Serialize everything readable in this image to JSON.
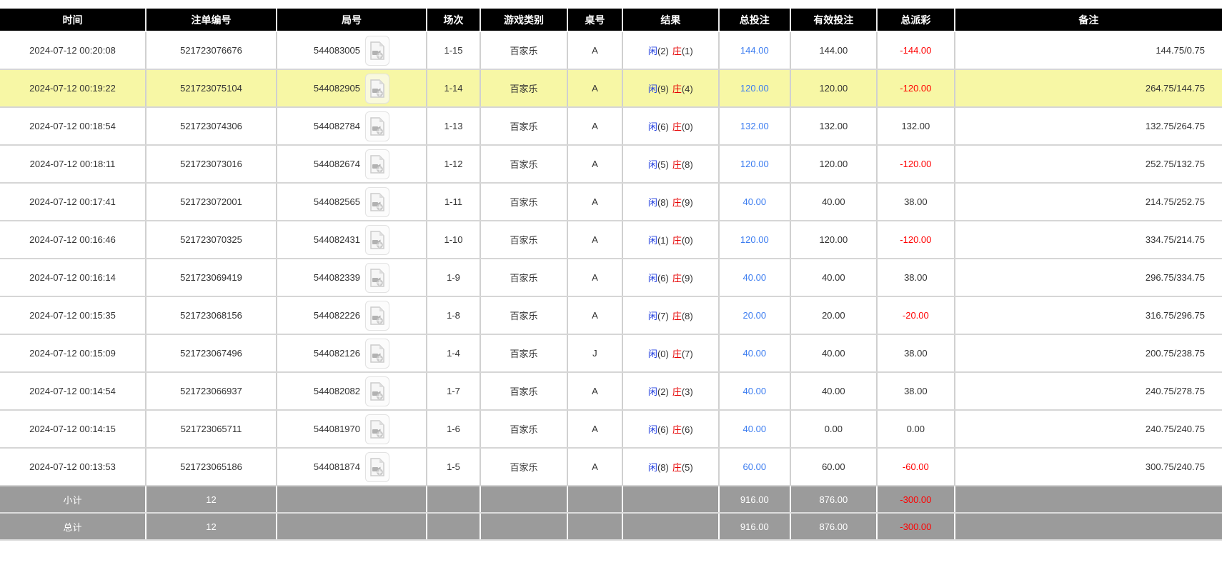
{
  "headers": [
    "时间",
    "注单编号",
    "局号",
    "场次",
    "游戏类别",
    "桌号",
    "结果",
    "总投注",
    "有效投注",
    "总派彩",
    "备注"
  ],
  "icons": {
    "video_record": "video-file-icon"
  },
  "colors": {
    "header_bg": "#000000",
    "header_text": "#ffffff",
    "highlight_row": "#f7f7a5",
    "player_blue": "#2743e0",
    "banker_red": "#e60000",
    "bet_blue": "#3b7cf0",
    "negative_red": "#ff0000",
    "summary_bg": "#9b9b9b"
  },
  "rows": [
    {
      "time": "2024-07-12 00:20:08",
      "bet_no": "521723076676",
      "round_no": "544083005",
      "session": "1-15",
      "game": "百家乐",
      "table": "A",
      "p_label": "闲",
      "p_score": "(2)",
      "b_label": "庄",
      "b_score": "(1)",
      "total_bet": "144.00",
      "valid_bet": "144.00",
      "payout": "-144.00",
      "payout_neg": true,
      "remark": "144.75/0.75",
      "highlight": false
    },
    {
      "time": "2024-07-12 00:19:22",
      "bet_no": "521723075104",
      "round_no": "544082905",
      "session": "1-14",
      "game": "百家乐",
      "table": "A",
      "p_label": "闲",
      "p_score": "(9)",
      "b_label": "庄",
      "b_score": "(4)",
      "total_bet": "120.00",
      "valid_bet": "120.00",
      "payout": "-120.00",
      "payout_neg": true,
      "remark": "264.75/144.75",
      "highlight": true
    },
    {
      "time": "2024-07-12 00:18:54",
      "bet_no": "521723074306",
      "round_no": "544082784",
      "session": "1-13",
      "game": "百家乐",
      "table": "A",
      "p_label": "闲",
      "p_score": "(6)",
      "b_label": "庄",
      "b_score": "(0)",
      "total_bet": "132.00",
      "valid_bet": "132.00",
      "payout": "132.00",
      "payout_neg": false,
      "remark": "132.75/264.75",
      "highlight": false
    },
    {
      "time": "2024-07-12 00:18:11",
      "bet_no": "521723073016",
      "round_no": "544082674",
      "session": "1-12",
      "game": "百家乐",
      "table": "A",
      "p_label": "闲",
      "p_score": "(5)",
      "b_label": "庄",
      "b_score": "(8)",
      "total_bet": "120.00",
      "valid_bet": "120.00",
      "payout": "-120.00",
      "payout_neg": true,
      "remark": "252.75/132.75",
      "highlight": false
    },
    {
      "time": "2024-07-12 00:17:41",
      "bet_no": "521723072001",
      "round_no": "544082565",
      "session": "1-11",
      "game": "百家乐",
      "table": "A",
      "p_label": "闲",
      "p_score": "(8)",
      "b_label": "庄",
      "b_score": "(9)",
      "total_bet": "40.00",
      "valid_bet": "40.00",
      "payout": "38.00",
      "payout_neg": false,
      "remark": "214.75/252.75",
      "highlight": false
    },
    {
      "time": "2024-07-12 00:16:46",
      "bet_no": "521723070325",
      "round_no": "544082431",
      "session": "1-10",
      "game": "百家乐",
      "table": "A",
      "p_label": "闲",
      "p_score": "(1)",
      "b_label": "庄",
      "b_score": "(0)",
      "total_bet": "120.00",
      "valid_bet": "120.00",
      "payout": "-120.00",
      "payout_neg": true,
      "remark": "334.75/214.75",
      "highlight": false
    },
    {
      "time": "2024-07-12 00:16:14",
      "bet_no": "521723069419",
      "round_no": "544082339",
      "session": "1-9",
      "game": "百家乐",
      "table": "A",
      "p_label": "闲",
      "p_score": "(6)",
      "b_label": "庄",
      "b_score": "(9)",
      "total_bet": "40.00",
      "valid_bet": "40.00",
      "payout": "38.00",
      "payout_neg": false,
      "remark": "296.75/334.75",
      "highlight": false
    },
    {
      "time": "2024-07-12 00:15:35",
      "bet_no": "521723068156",
      "round_no": "544082226",
      "session": "1-8",
      "game": "百家乐",
      "table": "A",
      "p_label": "闲",
      "p_score": "(7)",
      "b_label": "庄",
      "b_score": "(8)",
      "total_bet": "20.00",
      "valid_bet": "20.00",
      "payout": "-20.00",
      "payout_neg": true,
      "remark": "316.75/296.75",
      "highlight": false
    },
    {
      "time": "2024-07-12 00:15:09",
      "bet_no": "521723067496",
      "round_no": "544082126",
      "session": "1-4",
      "game": "百家乐",
      "table": "J",
      "p_label": "闲",
      "p_score": "(0)",
      "b_label": "庄",
      "b_score": "(7)",
      "total_bet": "40.00",
      "valid_bet": "40.00",
      "payout": "38.00",
      "payout_neg": false,
      "remark": "200.75/238.75",
      "highlight": false
    },
    {
      "time": "2024-07-12 00:14:54",
      "bet_no": "521723066937",
      "round_no": "544082082",
      "session": "1-7",
      "game": "百家乐",
      "table": "A",
      "p_label": "闲",
      "p_score": "(2)",
      "b_label": "庄",
      "b_score": "(3)",
      "total_bet": "40.00",
      "valid_bet": "40.00",
      "payout": "38.00",
      "payout_neg": false,
      "remark": "240.75/278.75",
      "highlight": false
    },
    {
      "time": "2024-07-12 00:14:15",
      "bet_no": "521723065711",
      "round_no": "544081970",
      "session": "1-6",
      "game": "百家乐",
      "table": "A",
      "p_label": "闲",
      "p_score": "(6)",
      "b_label": "庄",
      "b_score": "(6)",
      "total_bet": "40.00",
      "valid_bet": "0.00",
      "payout": "0.00",
      "payout_neg": false,
      "remark": "240.75/240.75",
      "highlight": false
    },
    {
      "time": "2024-07-12 00:13:53",
      "bet_no": "521723065186",
      "round_no": "544081874",
      "session": "1-5",
      "game": "百家乐",
      "table": "A",
      "p_label": "闲",
      "p_score": "(8)",
      "b_label": "庄",
      "b_score": "(5)",
      "total_bet": "60.00",
      "valid_bet": "60.00",
      "payout": "-60.00",
      "payout_neg": true,
      "remark": "300.75/240.75",
      "highlight": false
    }
  ],
  "summary": [
    {
      "label": "小计",
      "count": "12",
      "total_bet": "916.00",
      "valid_bet": "876.00",
      "payout": "-300.00",
      "payout_neg": true
    },
    {
      "label": "总计",
      "count": "12",
      "total_bet": "916.00",
      "valid_bet": "876.00",
      "payout": "-300.00",
      "payout_neg": true
    }
  ]
}
